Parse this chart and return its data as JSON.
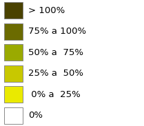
{
  "legend_items": [
    {
      "label": "> 100%",
      "color": "#4a4200"
    },
    {
      "label": "75% a 100%",
      "color": "#6b6b00"
    },
    {
      "label": "50% a  75%",
      "color": "#9aaa00"
    },
    {
      "label": "25% a  50%",
      "color": "#c8c800"
    },
    {
      "label": " 0% a  25%",
      "color": "#eaea00"
    },
    {
      "label": "0%",
      "color": "#ffffff"
    }
  ],
  "background_color": "#ffffff",
  "box_edge_color": "#888888",
  "fontsize": 9.5,
  "fig_width": 2.09,
  "fig_height": 1.83,
  "dpi": 100
}
